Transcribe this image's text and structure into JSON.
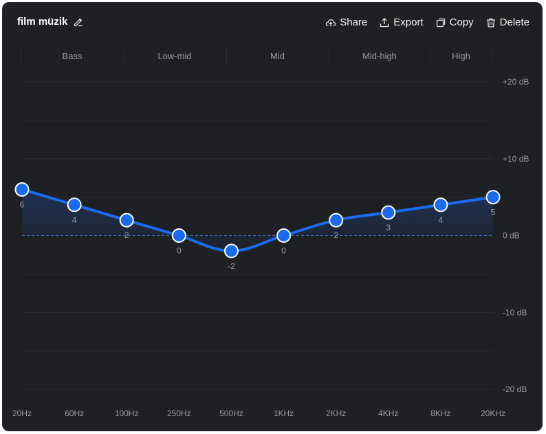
{
  "header": {
    "title": "film müzik",
    "actions": {
      "share": "Share",
      "export": "Export",
      "copy": "Copy",
      "delete": "Delete"
    }
  },
  "bands": [
    "Bass",
    "Low-mid",
    "Mid",
    "Mid-high",
    "High"
  ],
  "colors": {
    "accent": "#1a6bf0",
    "background": "#1f2023",
    "grid": "#2c2d31",
    "zero_line": "#3b6fd4",
    "text_muted": "#9a9ca2"
  },
  "chart_data": {
    "type": "line",
    "categories": [
      "20Hz",
      "60Hz",
      "100Hz",
      "250Hz",
      "500Hz",
      "1KHz",
      "2KHz",
      "4KHz",
      "8KHz",
      "20KHz"
    ],
    "values": [
      6,
      4,
      2,
      0,
      -2,
      0,
      2,
      3,
      4,
      5
    ],
    "ylim": [
      -20,
      20
    ],
    "y_ticks": [
      20,
      10,
      0,
      -10,
      -20
    ],
    "y_tick_labels": [
      "+20 dB",
      "+10 dB",
      "0 dB",
      "-10 dB",
      "-20 dB"
    ],
    "grid": true,
    "smooth": true,
    "filled": true
  }
}
